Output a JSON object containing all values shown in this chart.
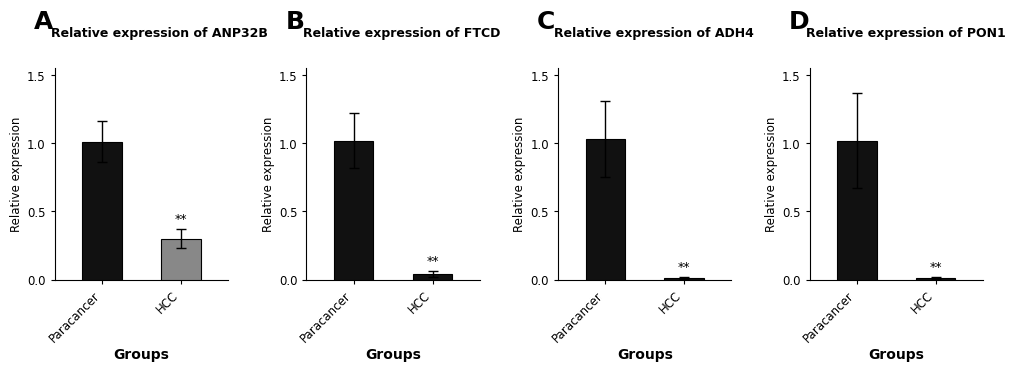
{
  "panels": [
    {
      "label": "A",
      "title": "Relative expression of ANP32B",
      "categories": [
        "Paracancer",
        "HCC"
      ],
      "values": [
        1.01,
        0.3
      ],
      "errors": [
        0.15,
        0.07
      ],
      "colors": [
        "#111111",
        "#888888"
      ],
      "sig_label": "**",
      "sig_index": 1,
      "ylim": [
        0,
        1.55
      ],
      "yticks": [
        0.0,
        0.5,
        1.0,
        1.5
      ]
    },
    {
      "label": "B",
      "title": "Relative expression of FTCD",
      "categories": [
        "Paracancer",
        "HCC"
      ],
      "values": [
        1.02,
        0.04
      ],
      "errors": [
        0.2,
        0.02
      ],
      "colors": [
        "#111111",
        "#111111"
      ],
      "sig_label": "**",
      "sig_index": 1,
      "ylim": [
        0,
        1.55
      ],
      "yticks": [
        0.0,
        0.5,
        1.0,
        1.5
      ]
    },
    {
      "label": "C",
      "title": "Relative expression of ADH4",
      "categories": [
        "Paracancer",
        "HCC"
      ],
      "values": [
        1.03,
        0.01
      ],
      "errors": [
        0.28,
        0.005
      ],
      "colors": [
        "#111111",
        "#111111"
      ],
      "sig_label": "**",
      "sig_index": 1,
      "ylim": [
        0,
        1.55
      ],
      "yticks": [
        0.0,
        0.5,
        1.0,
        1.5
      ]
    },
    {
      "label": "D",
      "title": "Relative expression of PON1",
      "categories": [
        "Paracancer",
        "HCC"
      ],
      "values": [
        1.02,
        0.01
      ],
      "errors": [
        0.35,
        0.005
      ],
      "colors": [
        "#111111",
        "#111111"
      ],
      "sig_label": "**",
      "sig_index": 1,
      "ylim": [
        0,
        1.55
      ],
      "yticks": [
        0.0,
        0.5,
        1.0,
        1.5
      ]
    }
  ],
  "ylabel": "Relative expression",
  "xlabel": "Groups",
  "background_color": "#ffffff",
  "bar_width": 0.5,
  "label_fontsize": 18,
  "title_fontsize": 9,
  "tick_fontsize": 8.5,
  "ylabel_fontsize": 8.5,
  "xlabel_fontsize": 10
}
